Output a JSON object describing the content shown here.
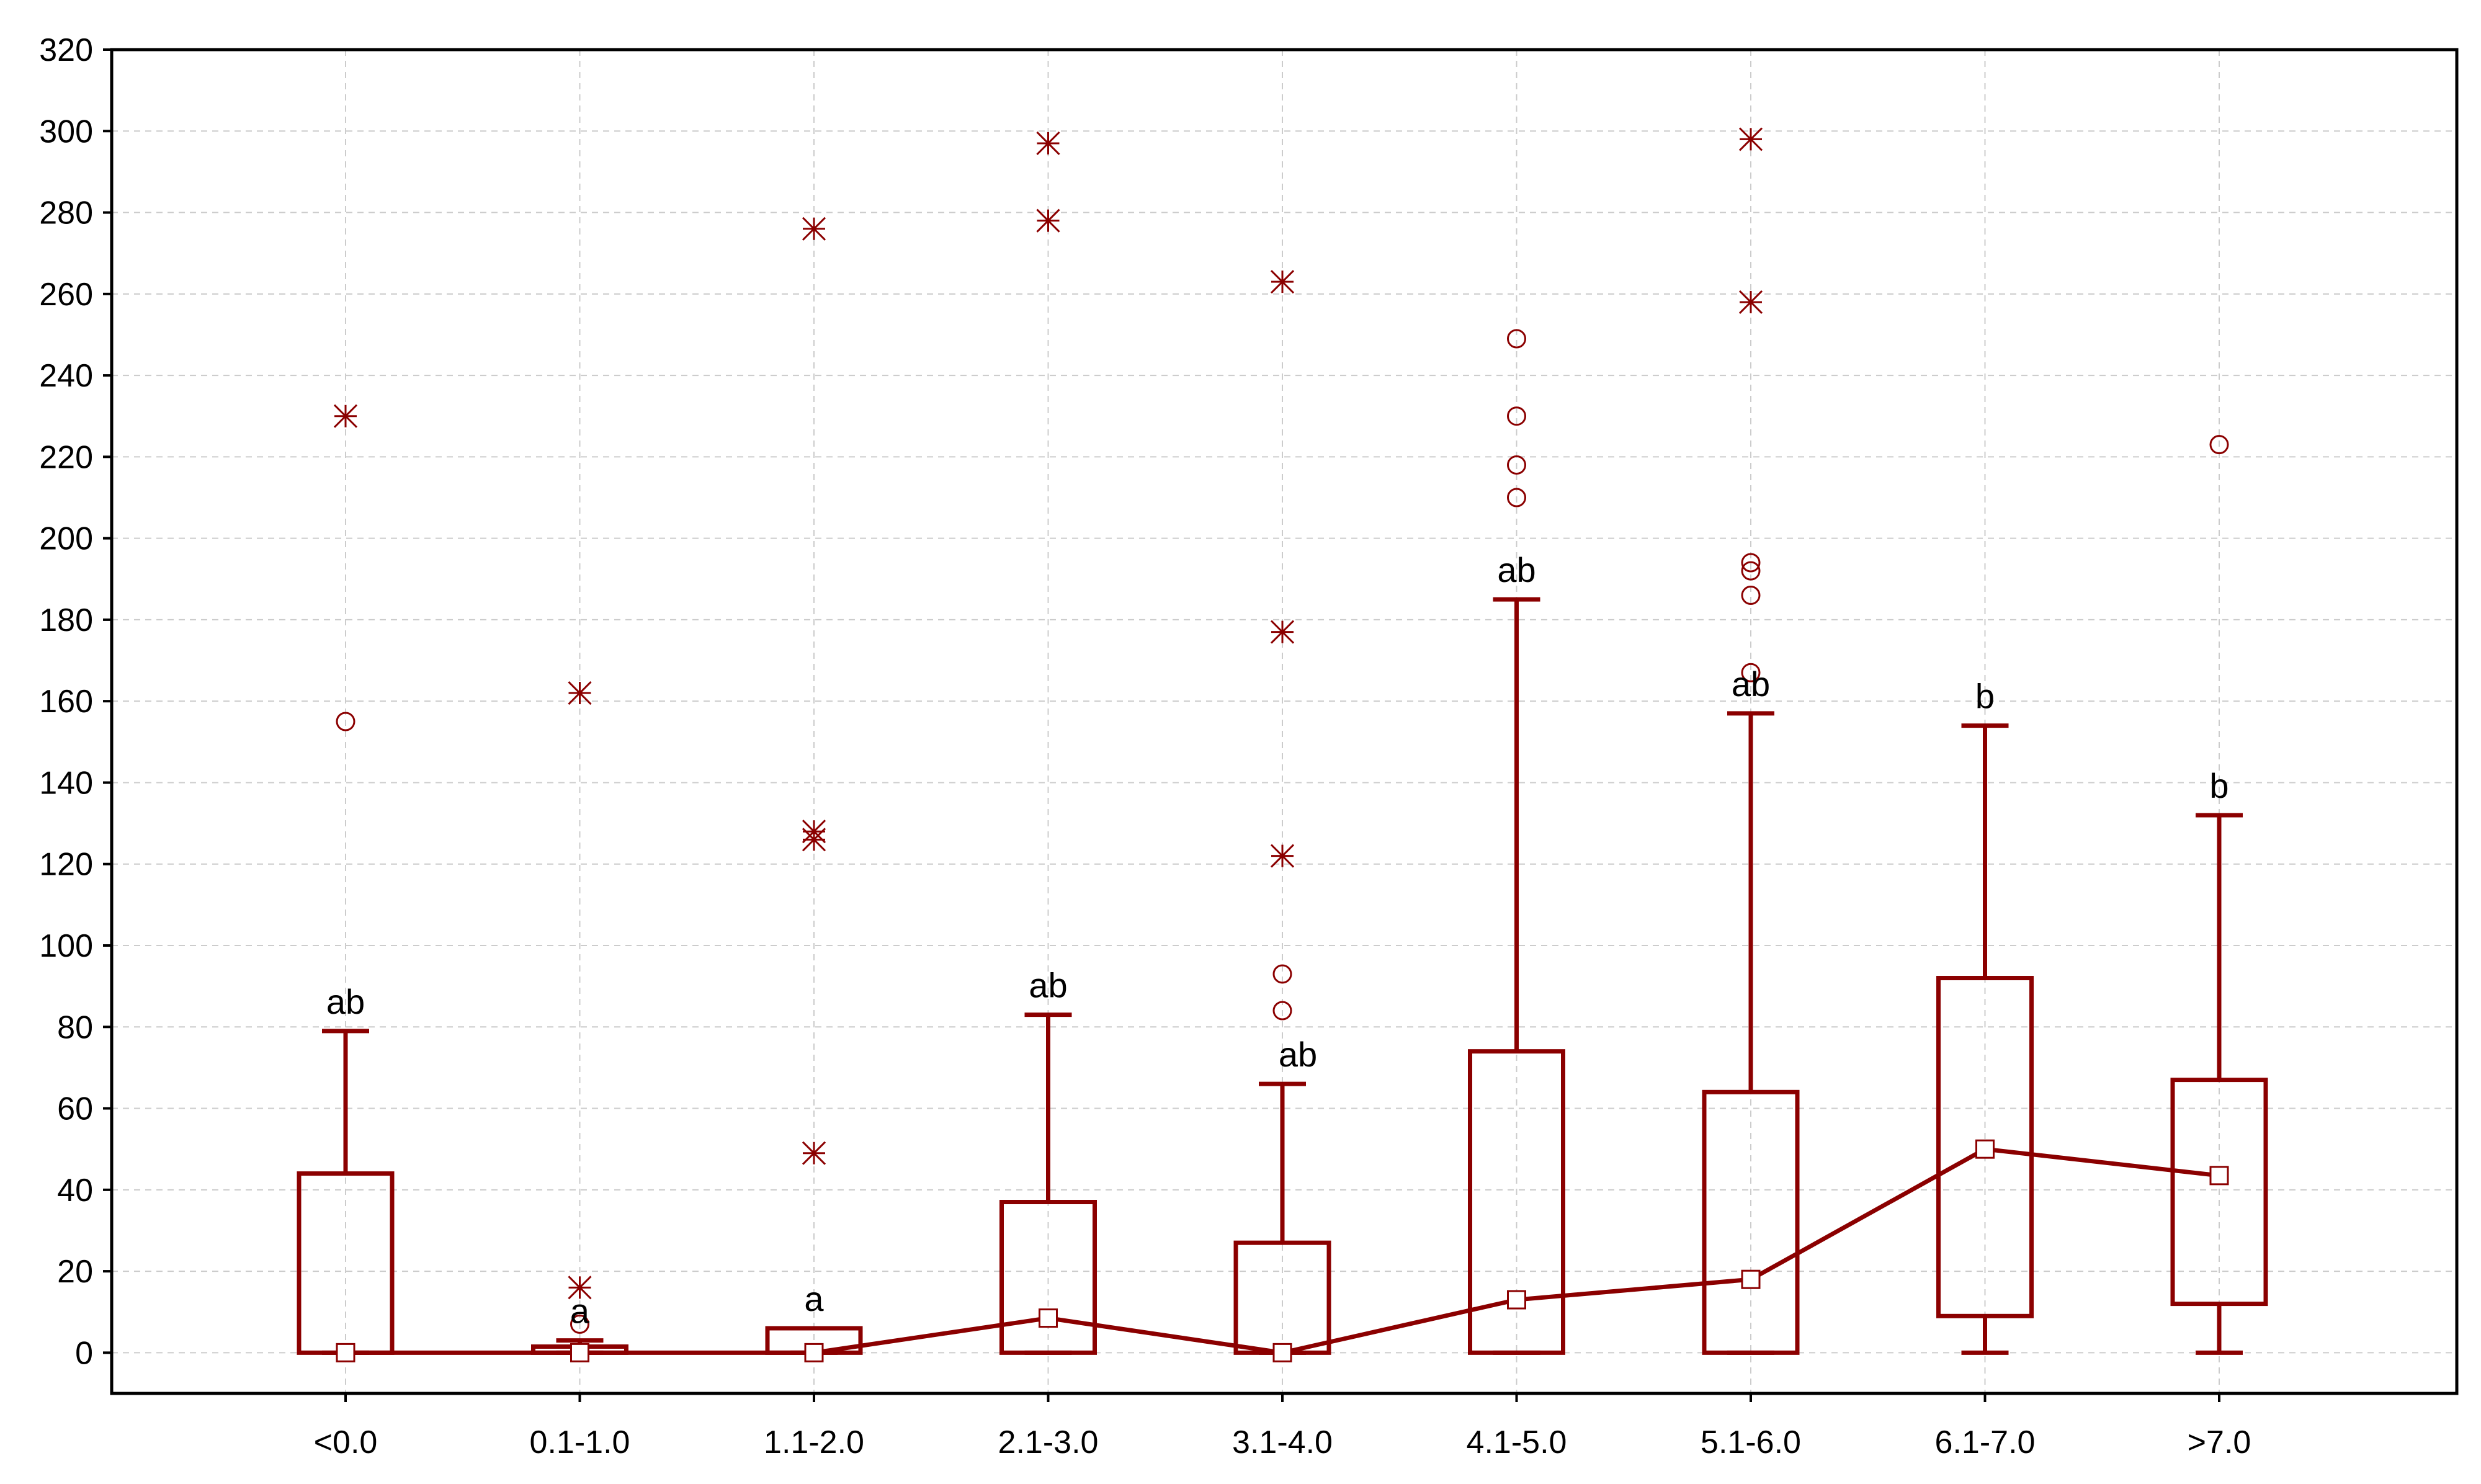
{
  "chart_data": {
    "type": "boxplot",
    "title": "",
    "xlabel": "",
    "ylabel": "",
    "ylim": [
      -10,
      320
    ],
    "yticks": [
      0,
      20,
      40,
      60,
      80,
      100,
      120,
      140,
      160,
      180,
      200,
      220,
      240,
      260,
      280,
      300,
      320
    ],
    "grid": true,
    "colors": {
      "series": "#8b0000",
      "median_fill": "#ffffff",
      "axis": "#000000",
      "grid": "#cccccc"
    },
    "categories": [
      "<0.0",
      "0.1-1.0",
      "1.1-2.0",
      "2.1-3.0",
      "3.1-4.0",
      "4.1-5.0",
      "5.1-6.0",
      "6.1-7.0",
      ">7.0"
    ],
    "boxes": [
      {
        "q1": 0,
        "q3": 44,
        "median": 0,
        "whisker_low": 0,
        "whisker_high": 79,
        "outliers": [
          155
        ],
        "extremes": [
          230
        ],
        "letter": "ab"
      },
      {
        "q1": 0,
        "q3": 1.5,
        "median": 0,
        "whisker_low": 0,
        "whisker_high": 3,
        "outliers": [
          7
        ],
        "extremes": [
          16,
          162
        ],
        "letter": "a"
      },
      {
        "q1": 0,
        "q3": 6,
        "median": 0,
        "whisker_low": 0,
        "whisker_high": 6,
        "outliers": [],
        "extremes": [
          49,
          126,
          128,
          276
        ],
        "letter": "a"
      },
      {
        "q1": 0,
        "q3": 37,
        "median": 8.5,
        "whisker_low": 0,
        "whisker_high": 83,
        "outliers": [],
        "extremes": [
          278,
          297
        ],
        "letter": "ab"
      },
      {
        "q1": 0,
        "q3": 27,
        "median": 0,
        "whisker_low": 0,
        "whisker_high": 66,
        "outliers": [
          84,
          93
        ],
        "extremes": [
          122,
          177,
          263
        ],
        "letter": "ab"
      },
      {
        "q1": 0,
        "q3": 74,
        "median": 13,
        "whisker_low": 0,
        "whisker_high": 185,
        "outliers": [
          210,
          218,
          230,
          249
        ],
        "extremes": [],
        "letter": "ab"
      },
      {
        "q1": 0,
        "q3": 64,
        "median": 18,
        "whisker_low": 0,
        "whisker_high": 157,
        "outliers": [
          167,
          186,
          192,
          194
        ],
        "extremes": [
          258,
          298
        ],
        "letter": "ab"
      },
      {
        "q1": 9,
        "q3": 92,
        "median": 50,
        "whisker_low": 0,
        "whisker_high": 154,
        "outliers": [],
        "extremes": [],
        "letter": "b"
      },
      {
        "q1": 12,
        "q3": 67,
        "median": 43.5,
        "whisker_low": 0,
        "whisker_high": 132,
        "outliers": [
          223
        ],
        "extremes": [],
        "letter": "b"
      }
    ]
  }
}
